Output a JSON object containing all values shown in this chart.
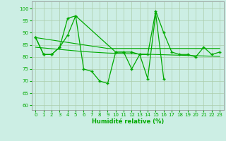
{
  "x": [
    0,
    1,
    2,
    3,
    4,
    5,
    6,
    7,
    8,
    9,
    10,
    11,
    12,
    13,
    14,
    15,
    16,
    17,
    18,
    19,
    20,
    21,
    22,
    23
  ],
  "line1": [
    88,
    81,
    81,
    84,
    89,
    97,
    75,
    74,
    70,
    69,
    82,
    82,
    75,
    81,
    71,
    98,
    71,
    null,
    null,
    null,
    null,
    null,
    null,
    null
  ],
  "line2": [
    88,
    81,
    81,
    84,
    96,
    97,
    null,
    null,
    null,
    null,
    82,
    82,
    82,
    81,
    81,
    99,
    90,
    82,
    81,
    81,
    80,
    84,
    81,
    82
  ],
  "trend1": [
    88,
    87.5,
    87,
    86.5,
    86,
    85.5,
    85,
    84.5,
    84,
    83.5,
    83.5,
    83.5,
    83.5,
    83.5,
    83.5,
    83.5,
    83.5,
    83.5,
    83.5,
    83.5,
    83.5,
    83.5,
    83.5,
    83.5
  ],
  "trend2": [
    84,
    83.7,
    83.4,
    83.1,
    82.8,
    82.5,
    82.2,
    82,
    81.8,
    81.6,
    81.5,
    81.4,
    81.3,
    81.2,
    81.1,
    81.0,
    80.9,
    80.8,
    80.7,
    80.6,
    80.5,
    80.4,
    80.3,
    80.2
  ],
  "line_color": "#00aa00",
  "bg_color": "#cceee4",
  "grid_color": "#aaccaa",
  "ylabel_values": [
    60,
    65,
    70,
    75,
    80,
    85,
    90,
    95,
    100
  ],
  "xlabel": "Humidité relative (%)",
  "ylim": [
    58,
    103
  ],
  "xlim": [
    -0.5,
    23.5
  ]
}
